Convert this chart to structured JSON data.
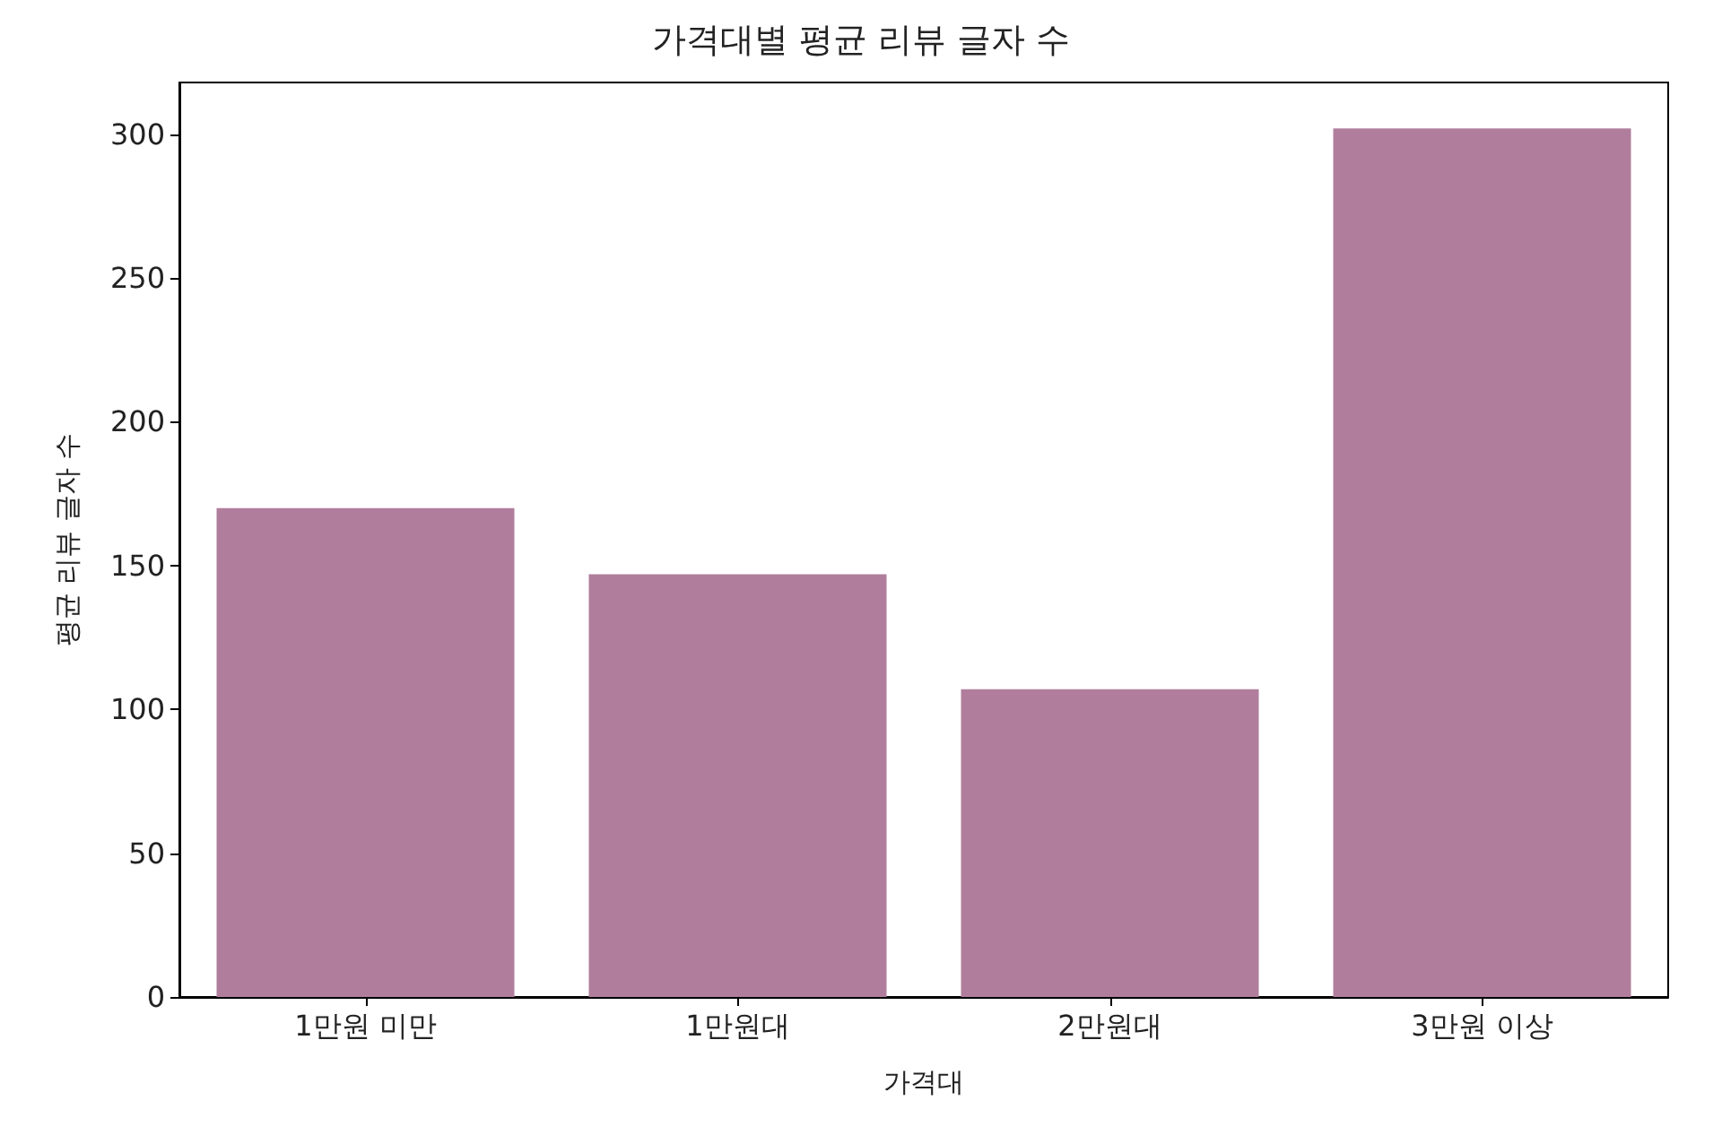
{
  "chart_data": {
    "type": "bar",
    "title": "가격대별 평균 리뷰 글자 수",
    "xlabel": "가격대",
    "ylabel": "평균 리뷰 글자 수",
    "categories": [
      "1만원 미만",
      "1만원대",
      "2만원대",
      "3만원 이상"
    ],
    "values": [
      170,
      147,
      107,
      302
    ],
    "color": "#b07e9c",
    "ylim": [
      0,
      318
    ],
    "yticks": [
      0,
      50,
      100,
      150,
      200,
      250,
      300
    ],
    "grid": false
  }
}
